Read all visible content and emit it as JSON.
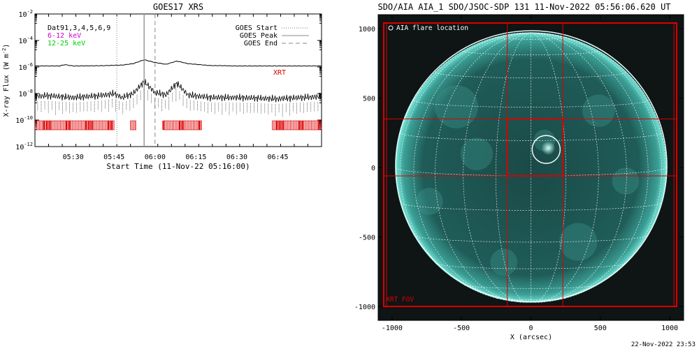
{
  "colors": {
    "xrt": "#dd0000",
    "low_band": "#cc00cc",
    "high_band": "#00cc00",
    "sun_disk": "#1f5f5c",
    "sun_limb": "#6fe0d4",
    "background": "#101515"
  },
  "chart_data": [
    {
      "type": "line",
      "title": "GOES17 XRS",
      "ylabel": "X-ray Flux (W m",
      "ylabel_sup": "-2",
      "ylabel_close": ")",
      "xlabel": "Start Time (11-Nov-22 05:16:00)",
      "y_scale": "log",
      "ylim": [
        1e-12,
        0.01
      ],
      "y_ticks": [
        {
          "value": 0.01,
          "base": "10",
          "exp": "-2"
        },
        {
          "value": 0.0001,
          "base": "10",
          "exp": "-4"
        },
        {
          "value": 1e-06,
          "base": "10",
          "exp": "-6"
        },
        {
          "value": 1e-08,
          "base": "10",
          "exp": "-8"
        },
        {
          "value": 1e-10,
          "base": "10",
          "exp": "-10"
        },
        {
          "value": 1e-12,
          "base": "10",
          "exp": "-12"
        }
      ],
      "xlim": [
        "05:16",
        "07:01"
      ],
      "x_ticks": [
        "05:30",
        "05:45",
        "06:00",
        "06:15",
        "06:30",
        "06:45"
      ],
      "legend_left": {
        "header": "Dat91,3,4,5,6,9",
        "low_band": "6-12 keV",
        "high_band": "12-25 keV"
      },
      "legend_right": {
        "start": "GOES Start",
        "peak": "GOES Peak",
        "end": "GOES End"
      },
      "events": {
        "start": "05:46",
        "peak": "05:56",
        "end": "06:00"
      },
      "series": [
        {
          "name": "6-12 keV",
          "x": [
            "05:16",
            "05:25",
            "05:27",
            "05:30",
            "05:40",
            "05:48",
            "05:52",
            "05:56",
            "06:00",
            "06:04",
            "06:08",
            "06:12",
            "06:20",
            "06:30",
            "06:45",
            "07:01"
          ],
          "values": [
            1.2e-06,
            1.2e-06,
            1.5e-06,
            1.2e-06,
            1.25e-06,
            1.4e-06,
            1.8e-06,
            3.5e-06,
            2.2e-06,
            1.6e-06,
            2.8e-06,
            1.8e-06,
            1.3e-06,
            1.2e-06,
            1.2e-06,
            1.2e-06
          ]
        },
        {
          "name": "12-25 keV",
          "x": [
            "05:16",
            "05:20",
            "05:30",
            "05:40",
            "05:45",
            "05:48",
            "05:52",
            "05:56",
            "06:00",
            "06:04",
            "06:08",
            "06:12",
            "06:20",
            "06:30",
            "06:45",
            "07:01"
          ],
          "values": [
            6e-09,
            7e-09,
            5e-09,
            7e-09,
            1e-08,
            5e-09,
            1e-08,
            8e-08,
            1.2e-08,
            8e-09,
            6e-08,
            8e-09,
            5e-09,
            5e-09,
            4e-09,
            6e-09
          ]
        }
      ],
      "xrt_label": "XRT",
      "xrt_coverage": [
        [
          "05:16",
          "05:45"
        ],
        [
          "05:51",
          "05:53"
        ],
        [
          "06:03",
          "06:17"
        ],
        [
          "06:43",
          "07:01"
        ]
      ]
    },
    {
      "type": "image",
      "title": "SDO/AIA AIA_1 SDO/JSOC-SDP 131 11-Nov-2022 05:56:06.620 UT",
      "xlabel": "X (arcsec)",
      "xlim": [
        -1100,
        1100
      ],
      "ylim": [
        -1100,
        1100
      ],
      "x_ticks": [
        "-1000",
        "-500",
        "0",
        "500",
        "1000"
      ],
      "y_ticks": [
        "1000",
        "500",
        "0",
        "-500",
        "-1000"
      ],
      "solar_radius_arcsec": 975,
      "flare_location_label": "AIA flare location",
      "flare_location": {
        "x": 110,
        "y": 130
      },
      "xrt_fov_label": "XRT FOV",
      "xrt_fov_outer": {
        "x_range": [
          -1060,
          1050
        ],
        "y_range": [
          -1000,
          1040
        ]
      },
      "xrt_fov_inner": {
        "x_range": [
          -170,
          230
        ],
        "y_range": [
          -60,
          350
        ]
      },
      "footer": "22-Nov-2022 23:53"
    }
  ]
}
